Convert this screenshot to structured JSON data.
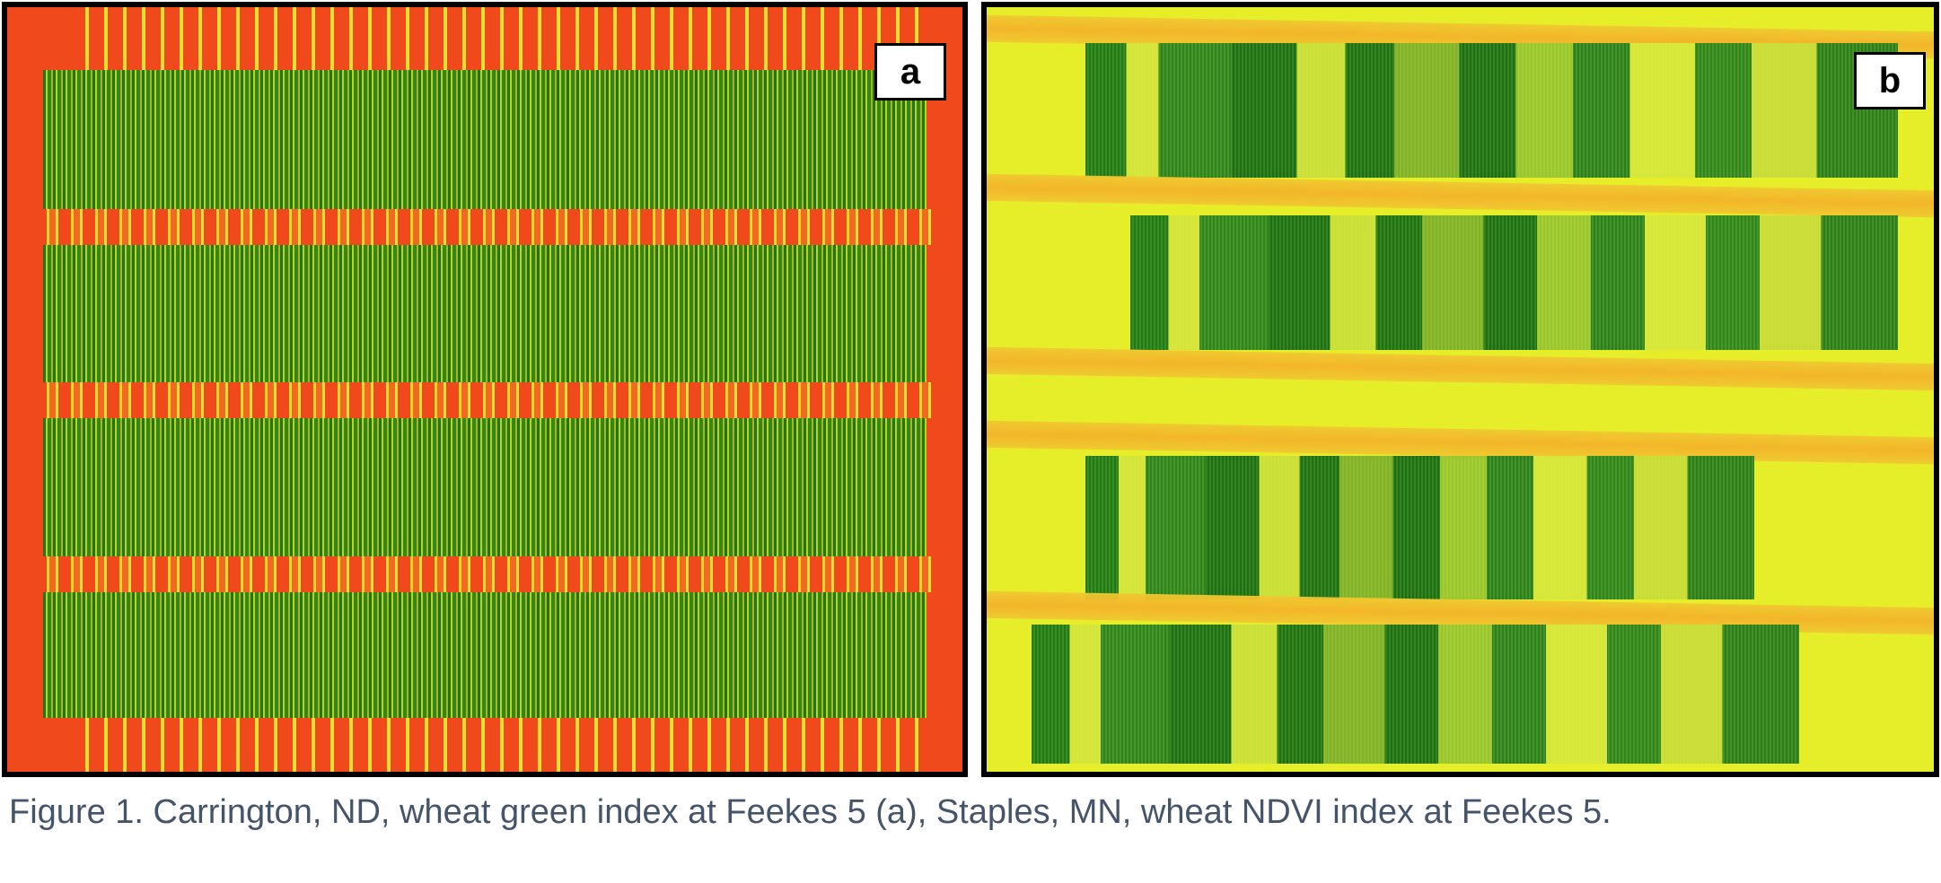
{
  "figure": {
    "panels": [
      {
        "label": "a",
        "description_index": "green index",
        "colors": {
          "low": "#f04a1c",
          "mid": "#e6e030",
          "high": "#1a6e16"
        }
      },
      {
        "label": "b",
        "description_index": "NDVI index",
        "colors": {
          "low": "#f3b32a",
          "mid": "#e6ee2a",
          "high": "#1a6e16"
        }
      }
    ],
    "caption": "Figure 1. Carrington, ND, wheat green index at Feekes 5 (a), Staples, MN, wheat NDVI index at Feekes 5."
  }
}
